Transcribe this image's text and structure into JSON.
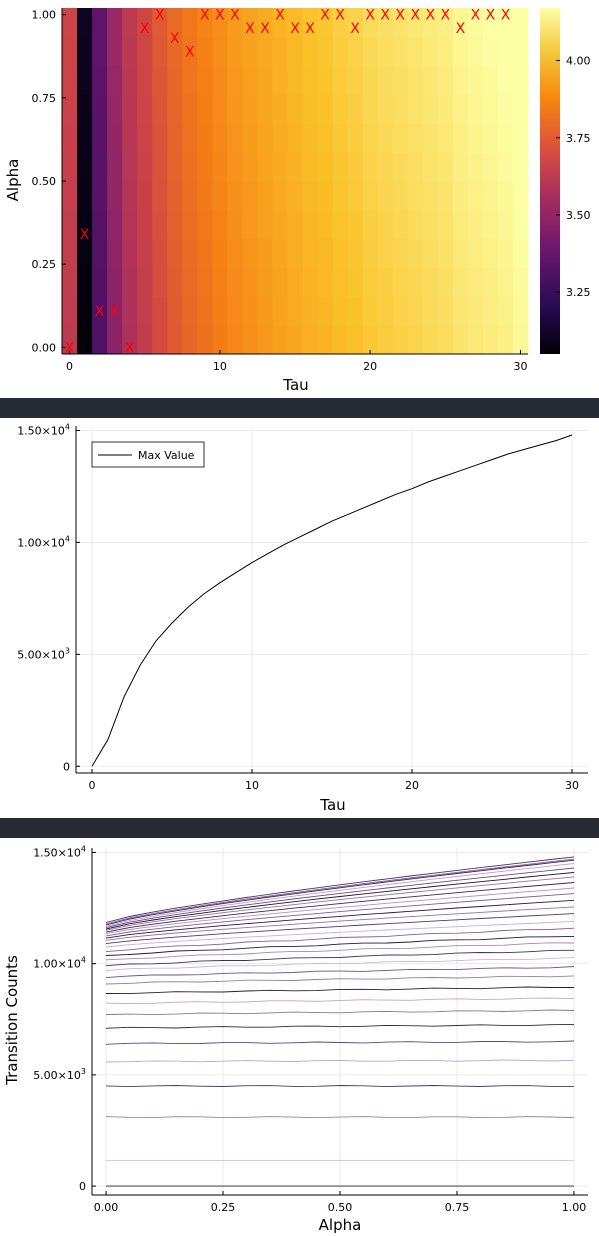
{
  "colors": {
    "separator": "#262a33",
    "marker": "#ff0000",
    "grid": "#e6e6e6"
  },
  "chart_data": [
    {
      "type": "heatmap",
      "xlabel": "Tau",
      "ylabel": "Alpha",
      "x_ticks": [
        "0",
        "10",
        "20",
        "30"
      ],
      "y_ticks": [
        "0.00",
        "0.25",
        "0.50",
        "0.75",
        "1.00"
      ],
      "colorbar_ticks": [
        "3.25",
        "3.50",
        "3.75",
        "4.00"
      ],
      "colorbar_range": [
        3.05,
        4.17
      ],
      "xlim": [
        -0.5,
        30.5
      ],
      "ylim": [
        -0.02,
        1.02
      ],
      "colormap": "inferno",
      "tau_values": [
        0,
        1,
        2,
        3,
        4,
        5,
        6,
        7,
        8,
        9,
        10,
        11,
        12,
        13,
        14,
        15,
        16,
        17,
        18,
        19,
        20,
        21,
        22,
        23,
        24,
        25,
        26,
        27,
        28,
        29,
        30
      ],
      "column_values": [
        3.62,
        3.06,
        3.31,
        3.47,
        3.57,
        3.63,
        3.69,
        3.74,
        3.78,
        3.81,
        3.84,
        3.87,
        3.89,
        3.91,
        3.93,
        3.95,
        3.97,
        3.98,
        4.0,
        4.01,
        4.03,
        4.04,
        4.05,
        4.06,
        4.07,
        4.08,
        4.1,
        4.11,
        4.12,
        4.13,
        4.15
      ],
      "alpha_gradient": 0.05,
      "markers": {
        "label": "X",
        "points": [
          [
            0,
            0.0
          ],
          [
            1,
            0.34
          ],
          [
            2,
            0.11
          ],
          [
            3,
            0.11
          ],
          [
            4,
            0.0
          ],
          [
            5,
            0.96
          ],
          [
            6,
            1.0
          ],
          [
            7,
            0.93
          ],
          [
            8,
            0.89
          ],
          [
            9,
            1.0
          ],
          [
            10,
            1.0
          ],
          [
            11,
            1.0
          ],
          [
            12,
            0.96
          ],
          [
            13,
            0.96
          ],
          [
            14,
            1.0
          ],
          [
            15,
            0.96
          ],
          [
            16,
            0.96
          ],
          [
            17,
            1.0
          ],
          [
            18,
            1.0
          ],
          [
            19,
            0.96
          ],
          [
            20,
            1.0
          ],
          [
            21,
            1.0
          ],
          [
            22,
            1.0
          ],
          [
            23,
            1.0
          ],
          [
            24,
            1.0
          ],
          [
            25,
            1.0
          ],
          [
            26,
            0.96
          ],
          [
            27,
            1.0
          ],
          [
            28,
            1.0
          ],
          [
            29,
            1.0
          ]
        ]
      }
    },
    {
      "type": "line",
      "xlabel": "Tau",
      "ylabel": "",
      "x_ticks": [
        "0",
        "10",
        "20",
        "30"
      ],
      "y_ticks": [
        {
          "m": "0",
          "e": ""
        },
        {
          "m": "5.00×10",
          "e": "3"
        },
        {
          "m": "1.00×10",
          "e": "4"
        },
        {
          "m": "1.50×10",
          "e": "4"
        }
      ],
      "xlim": [
        -1,
        31
      ],
      "ylim": [
        -300,
        15200
      ],
      "legend": "top-left",
      "series": [
        {
          "name": "Max Value",
          "x": [
            0,
            1,
            2,
            3,
            4,
            5,
            6,
            7,
            8,
            9,
            10,
            11,
            12,
            13,
            14,
            15,
            16,
            17,
            18,
            19,
            20,
            21,
            22,
            23,
            24,
            25,
            26,
            27,
            28,
            29,
            30
          ],
          "y": [
            0,
            1200,
            3100,
            4500,
            5600,
            6400,
            7100,
            7700,
            8200,
            8650,
            9100,
            9500,
            9900,
            10250,
            10600,
            10950,
            11250,
            11550,
            11850,
            12150,
            12400,
            12700,
            12950,
            13200,
            13450,
            13700,
            13950,
            14150,
            14350,
            14550,
            14800
          ]
        }
      ]
    },
    {
      "type": "line",
      "xlabel": "Alpha",
      "ylabel": "Transition Counts",
      "x_ticks": [
        "0.00",
        "0.25",
        "0.50",
        "0.75",
        "1.00"
      ],
      "y_ticks": [
        {
          "m": "0",
          "e": ""
        },
        {
          "m": "5.00×10",
          "e": "3"
        },
        {
          "m": "1.00×10",
          "e": "4"
        },
        {
          "m": "1.50×10",
          "e": "4"
        }
      ],
      "xlim": [
        -0.03,
        1.03
      ],
      "ylim": [
        -400,
        15200
      ],
      "alpha_values": [
        0,
        0.05,
        0.1,
        0.15,
        0.2,
        0.25,
        0.3,
        0.35,
        0.4,
        0.45,
        0.5,
        0.55,
        0.6,
        0.65,
        0.7,
        0.75,
        0.8,
        0.85,
        0.9,
        0.95,
        1.0
      ],
      "series_start_values": [
        0,
        1150,
        3100,
        4500,
        5600,
        6400,
        7100,
        7700,
        8200,
        8650,
        9100,
        9400,
        9700,
        9900,
        10150,
        10350,
        10550,
        10750,
        10900,
        11050,
        11150,
        11250,
        11350,
        11420,
        11500,
        11560,
        11620,
        11680,
        11740,
        11790,
        11850
      ],
      "series_end_values": [
        0,
        1150,
        3100,
        4500,
        5650,
        6500,
        7250,
        7900,
        8450,
        8950,
        9450,
        9850,
        10250,
        10600,
        10950,
        11250,
        11600,
        11900,
        12250,
        12550,
        12850,
        13150,
        13400,
        13650,
        13900,
        14100,
        14300,
        14500,
        14650,
        14700,
        14800
      ],
      "line_colors": [
        "#1c1c3c",
        "#d7c8e0",
        "#a37ba0",
        "#3b3c75",
        "#bba7c8",
        "#56487e",
        "#2a2450",
        "#8e70a7",
        "#c9a0c4",
        "#1f1f3a",
        "#9b78b0",
        "#6c4f8a",
        "#d1b3d6",
        "#3d2f63",
        "#b184a9",
        "#221a38",
        "#8a5d95",
        "#c6aee0",
        "#4c3a74",
        "#a7699c",
        "#25183e",
        "#7d5e9c",
        "#bd8fbb",
        "#352a60",
        "#9f6fa3",
        "#1b1930",
        "#6a4b85",
        "#c59acb",
        "#2f2454",
        "#8f5a90",
        "#413677"
      ]
    }
  ]
}
